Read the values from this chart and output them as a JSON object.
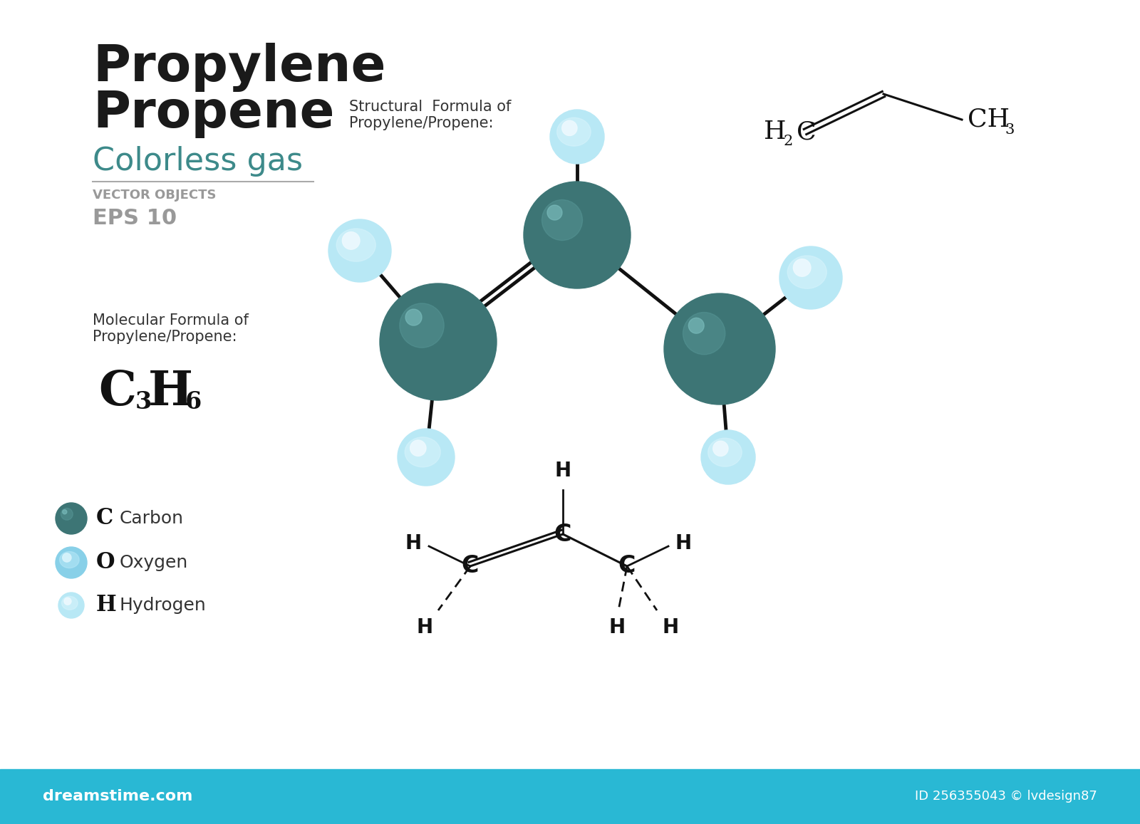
{
  "bg_color": "#ffffff",
  "bottom_bar_color": "#29b8d4",
  "title_line1": "Propylene",
  "title_line2": "Propene",
  "subtitle": "Colorless gas",
  "subtitle_color": "#3d8a8a",
  "vector_label": "VECTOR OBJECTS",
  "eps_label": "EPS 10",
  "mol_formula_label": "Molecular Formula of\nPropylene/Propene:",
  "structural_label": "Structural  Formula of\nPropylene/Propene:",
  "carbon_color": "#3d7575",
  "legend_C": "C",
  "legend_O": "O",
  "legend_H": "H",
  "legend_carbon": "Carbon",
  "legend_oxygen": "Oxygen",
  "legend_hydrogen": "Hydrogen",
  "id_text": "ID 256355043 © lvdesign87"
}
